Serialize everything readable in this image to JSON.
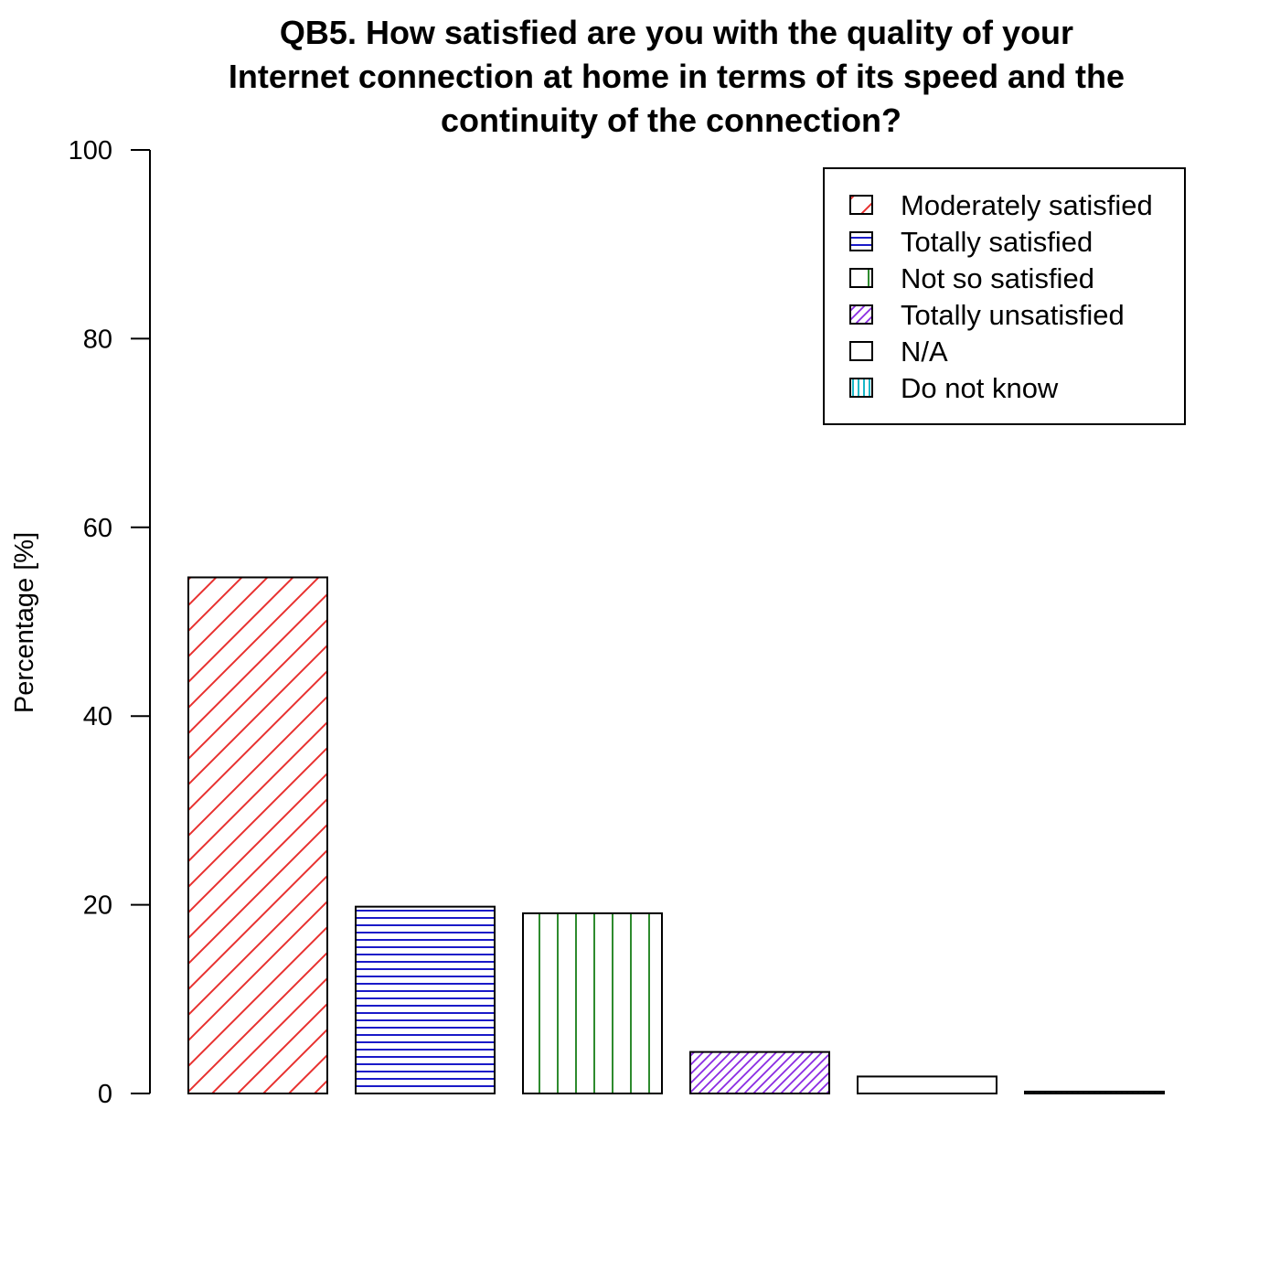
{
  "chart_data": {
    "type": "bar",
    "title_lines": [
      "QB5. How satisfied are you with the quality of your",
      "Internet connection at home in terms of its speed and the",
      "continuity of the connection?"
    ],
    "ylabel": "Percentage [%]",
    "ylim": [
      0,
      100
    ],
    "yticks": [
      0,
      20,
      40,
      60,
      80,
      100
    ],
    "legend_position": "top-right",
    "grid": false,
    "categories": [
      "Moderately satisfied",
      "Totally satisfied",
      "Not so satisfied",
      "Totally unsatisfied",
      "N/A",
      "Do not know"
    ],
    "values": [
      54.7,
      19.8,
      19.1,
      4.4,
      1.8,
      0.2
    ],
    "colors": [
      "#e8312f",
      "#1a1ac8",
      "#2e8b2e",
      "#8a2be2",
      "#f08c1e",
      "#1ab8c8"
    ],
    "patterns": [
      "diagonal",
      "horizontal",
      "vertical",
      "diagonal-dense",
      "none",
      "vertical-dense"
    ]
  }
}
